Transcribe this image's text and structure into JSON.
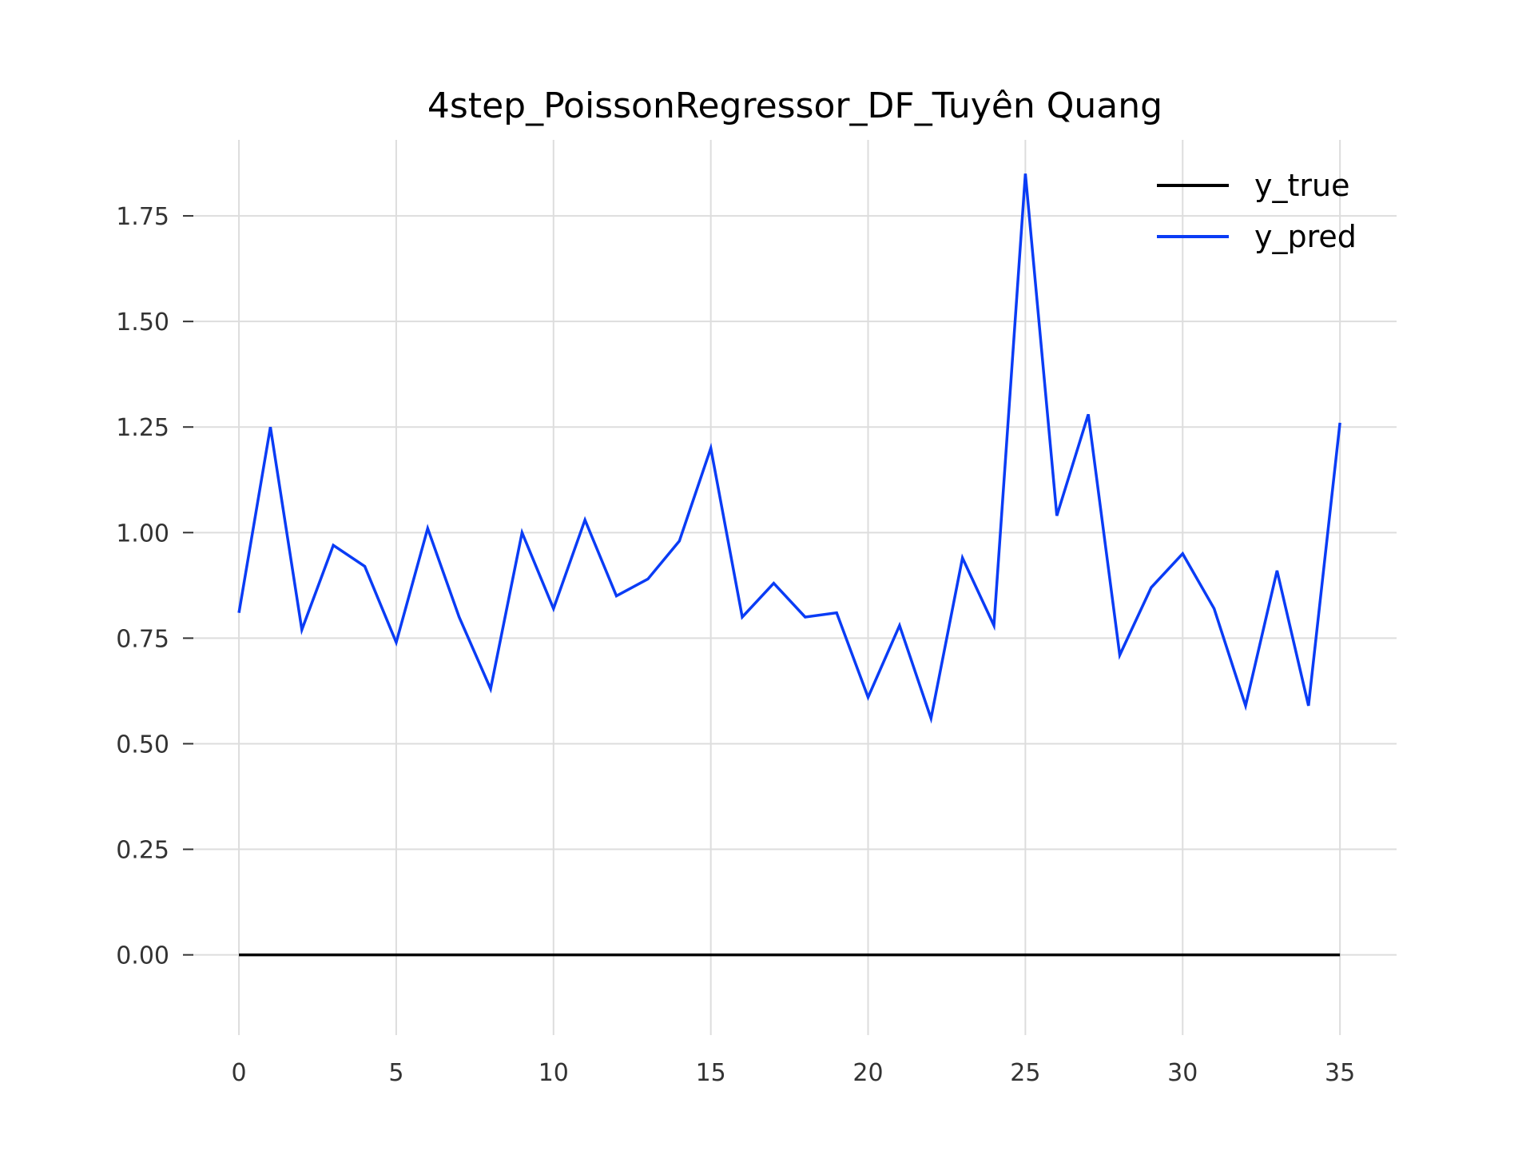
{
  "chart_data": {
    "type": "line",
    "title": "4step_PoissonRegressor_DF_Tuyên Quang",
    "xlabel": "",
    "ylabel": "",
    "xlim": [
      -1.5,
      36.8
    ],
    "ylim": [
      -0.19,
      1.93
    ],
    "xticks": [
      0,
      5,
      10,
      15,
      20,
      25,
      30,
      35
    ],
    "xtick_labels": [
      "0",
      "5",
      "10",
      "15",
      "20",
      "25",
      "30",
      "35"
    ],
    "yticks": [
      0,
      0.25,
      0.5,
      0.75,
      1.0,
      1.25,
      1.5,
      1.75
    ],
    "ytick_labels": [
      "0.00",
      "0.25",
      "0.50",
      "0.75",
      "1.00",
      "1.25",
      "1.50",
      "1.75"
    ],
    "grid": true,
    "legend_position": "top-right",
    "x": [
      0,
      1,
      2,
      3,
      4,
      5,
      6,
      7,
      8,
      9,
      10,
      11,
      12,
      13,
      14,
      15,
      16,
      17,
      18,
      19,
      20,
      21,
      22,
      23,
      24,
      25,
      26,
      27,
      28,
      29,
      30,
      31,
      32,
      33,
      34,
      35
    ],
    "series": [
      {
        "name": "y_true",
        "color": "#000000",
        "values": [
          0,
          0,
          0,
          0,
          0,
          0,
          0,
          0,
          0,
          0,
          0,
          0,
          0,
          0,
          0,
          0,
          0,
          0,
          0,
          0,
          0,
          0,
          0,
          0,
          0,
          0,
          0,
          0,
          0,
          0,
          0,
          0,
          0,
          0,
          0,
          0
        ]
      },
      {
        "name": "y_pred",
        "color": "#0a3cf5",
        "values": [
          0.81,
          1.25,
          0.77,
          0.97,
          0.92,
          0.74,
          1.01,
          0.8,
          0.63,
          1.0,
          0.82,
          1.03,
          0.85,
          0.89,
          0.98,
          1.2,
          0.8,
          0.88,
          0.8,
          0.81,
          0.61,
          0.78,
          0.56,
          0.94,
          0.78,
          1.85,
          1.04,
          1.28,
          0.71,
          0.87,
          0.95,
          0.82,
          0.59,
          0.91,
          0.59,
          1.26
        ]
      }
    ]
  }
}
